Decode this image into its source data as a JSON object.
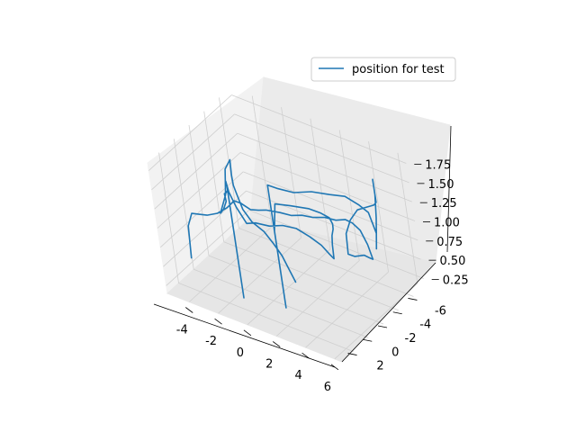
{
  "chart_data": {
    "type": "line",
    "projection": "3d",
    "title": "",
    "xlabel": "",
    "ylabel": "",
    "zlabel": "",
    "grid": true,
    "legend_position": "top-right",
    "xlim": [
      -5.5,
      6.5
    ],
    "ylim": [
      -7.5,
      3.5
    ],
    "zlim": [
      0.15,
      1.85
    ],
    "x_ticks": [
      "-4",
      "-2",
      "0",
      "2",
      "4",
      "6"
    ],
    "y_ticks": [
      "-6",
      "-4",
      "-2",
      "0",
      "2"
    ],
    "z_ticks": [
      "0.25",
      "0.50",
      "0.75",
      "1.00",
      "1.25",
      "1.50",
      "1.75"
    ],
    "series": [
      {
        "name": "position for test",
        "color": "#1f77b4",
        "points": [
          [
            -4.6,
            1.5,
            0.5
          ],
          [
            -4.6,
            1.3,
            0.9
          ],
          [
            -4.4,
            1.0,
            1.05
          ],
          [
            -4.0,
            0.8,
            1.05
          ],
          [
            -3.8,
            0.2,
            1.0
          ],
          [
            -3.4,
            -0.4,
            1.0
          ],
          [
            -3.0,
            -1.0,
            1.05
          ],
          [
            -2.8,
            -1.6,
            1.1
          ],
          [
            -2.6,
            -2.0,
            1.05
          ],
          [
            -2.0,
            -2.1,
            1.0
          ],
          [
            -1.5,
            -2.2,
            1.02
          ],
          [
            -1.0,
            -2.3,
            1.05
          ],
          [
            -0.2,
            -2.6,
            1.05
          ],
          [
            0.4,
            -2.9,
            1.03
          ],
          [
            1.0,
            -3.2,
            1.05
          ],
          [
            1.6,
            -3.5,
            1.04
          ],
          [
            2.2,
            -3.9,
            1.05
          ],
          [
            2.8,
            -4.2,
            1.03
          ],
          [
            3.3,
            -4.5,
            1.05
          ],
          [
            3.6,
            -4.8,
            1.0
          ],
          [
            3.9,
            -5.1,
            0.9
          ],
          [
            4.1,
            -5.4,
            0.7
          ],
          [
            4.2,
            -5.6,
            0.5
          ],
          [
            4.0,
            -5.6,
            0.5
          ],
          [
            3.8,
            -5.3,
            0.55
          ],
          [
            3.4,
            -4.8,
            0.55
          ],
          [
            3.2,
            -4.4,
            0.6
          ],
          [
            3.4,
            -4.2,
            0.9
          ],
          [
            3.8,
            -4.3,
            1.1
          ],
          [
            4.3,
            -4.5,
            1.25
          ],
          [
            4.8,
            -4.7,
            1.3
          ],
          [
            5.3,
            -4.9,
            1.35
          ],
          [
            5.5,
            -4.9,
            1.4
          ],
          [
            5.5,
            -4.9,
            1.7
          ],
          [
            5.5,
            -4.9,
            1.5
          ],
          [
            5.4,
            -4.8,
            1.2
          ],
          [
            5.3,
            -4.7,
            1.0
          ],
          [
            5.2,
            -4.6,
            0.8
          ],
          [
            5.3,
            -4.7,
            1.0
          ],
          [
            5.2,
            -4.3,
            1.3
          ],
          [
            5.0,
            -3.6,
            1.45
          ],
          [
            4.6,
            -2.8,
            1.6
          ],
          [
            4.0,
            -2.0,
            1.65
          ],
          [
            3.2,
            -1.2,
            1.7
          ],
          [
            2.4,
            -0.4,
            1.7
          ],
          [
            1.6,
            0.2,
            1.75
          ],
          [
            1.2,
            0.6,
            1.8
          ],
          [
            1.2,
            0.6,
            0.2
          ],
          [
            1.2,
            0.6,
            1.2
          ],
          [
            1.4,
            0.4,
            1.55
          ],
          [
            2.0,
            -0.4,
            1.5
          ],
          [
            2.8,
            -1.2,
            1.45
          ],
          [
            3.4,
            -1.6,
            1.4
          ],
          [
            3.6,
            -2.2,
            1.3
          ],
          [
            3.4,
            -2.8,
            1.15
          ],
          [
            3.0,
            -3.4,
            1.0
          ],
          [
            2.6,
            -3.8,
            0.85
          ],
          [
            2.4,
            -4.0,
            0.7
          ],
          [
            2.3,
            -4.1,
            0.5
          ],
          [
            2.1,
            -4.0,
            0.55
          ],
          [
            1.9,
            -3.5,
            0.7
          ],
          [
            1.6,
            -2.8,
            0.85
          ],
          [
            1.2,
            -2.0,
            1.0
          ],
          [
            0.6,
            -1.4,
            1.05
          ],
          [
            0.0,
            -0.8,
            1.05
          ],
          [
            -0.6,
            -0.2,
            1.1
          ],
          [
            -1.0,
            0.2,
            1.1
          ],
          [
            -1.2,
            0.8,
            1.35
          ],
          [
            -1.2,
            1.4,
            1.6
          ],
          [
            -1.0,
            1.9,
            1.8
          ],
          [
            -0.9,
            2.0,
            1.75
          ],
          [
            -0.9,
            2.0,
            0.3
          ],
          [
            -0.9,
            2.0,
            1.7
          ],
          [
            -1.3,
            1.6,
            1.6
          ],
          [
            -1.8,
            1.0,
            1.5
          ],
          [
            -2.0,
            0.6,
            1.35
          ],
          [
            -2.4,
            0.4,
            1.2
          ],
          [
            -2.8,
            0.2,
            1.1
          ],
          [
            -2.6,
            -0.4,
            1.3
          ],
          [
            -2.6,
            -0.8,
            1.6
          ],
          [
            -2.4,
            -1.2,
            1.7
          ],
          [
            -2.2,
            -0.8,
            1.55
          ],
          [
            -1.8,
            -0.2,
            1.5
          ],
          [
            -1.4,
            0.2,
            1.45
          ],
          [
            -1.0,
            0.4,
            1.3
          ],
          [
            -0.6,
            0.2,
            1.15
          ],
          [
            -0.2,
            -0.4,
            1.0
          ],
          [
            0.0,
            -1.0,
            0.8
          ],
          [
            0.1,
            -1.6,
            0.6
          ],
          [
            0.2,
            -2.0,
            0.4
          ],
          [
            0.3,
            -2.4,
            0.2
          ]
        ]
      }
    ]
  }
}
